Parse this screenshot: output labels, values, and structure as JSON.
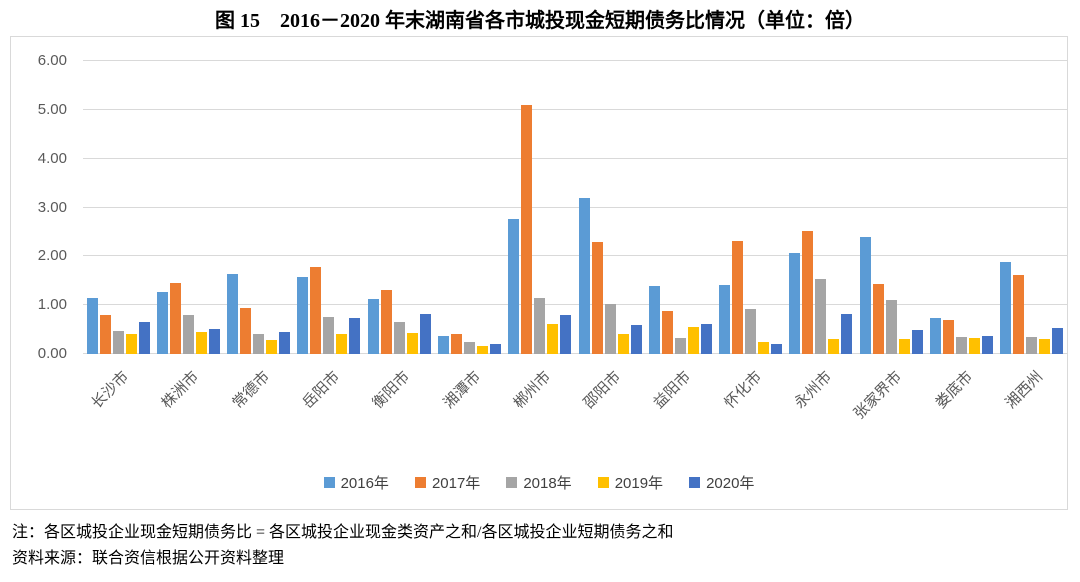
{
  "title": "图 15　2016－2020 年末湖南省各市城投现金短期债务比情况（单位：倍）",
  "chart_data": {
    "type": "bar",
    "title": "图 15　2016－2020 年末湖南省各市城投现金短期债务比情况（单位：倍）",
    "unit": "倍",
    "categories": [
      "长沙市",
      "株洲市",
      "常德市",
      "岳阳市",
      "衡阳市",
      "湘潭市",
      "郴州市",
      "邵阳市",
      "益阳市",
      "怀化市",
      "永州市",
      "张家界市",
      "娄底市",
      "湘西州"
    ],
    "series": [
      {
        "name": "2016年",
        "color": "#5B9BD5",
        "values": [
          1.15,
          1.27,
          1.64,
          1.58,
          1.13,
          0.37,
          2.76,
          3.19,
          1.39,
          1.41,
          2.06,
          2.4,
          0.73,
          1.88
        ]
      },
      {
        "name": "2017年",
        "color": "#ED7D31",
        "values": [
          0.8,
          1.45,
          0.95,
          1.78,
          1.32,
          0.4,
          5.1,
          2.3,
          0.88,
          2.32,
          2.51,
          1.44,
          0.69,
          1.62
        ]
      },
      {
        "name": "2018年",
        "color": "#A5A5A5",
        "values": [
          0.48,
          0.8,
          0.41,
          0.75,
          0.65,
          0.24,
          1.14,
          1.02,
          0.32,
          0.93,
          1.54,
          1.1,
          0.35,
          0.35
        ]
      },
      {
        "name": "2019年",
        "color": "#FFC000",
        "values": [
          0.42,
          0.45,
          0.29,
          0.41,
          0.44,
          0.17,
          0.62,
          0.42,
          0.55,
          0.25,
          0.31,
          0.31,
          0.32,
          0.3
        ]
      },
      {
        "name": "2020年",
        "color": "#4472C4",
        "values": [
          0.65,
          0.52,
          0.46,
          0.73,
          0.82,
          0.2,
          0.79,
          0.6,
          0.62,
          0.2,
          0.81,
          0.49,
          0.36,
          0.53
        ]
      }
    ],
    "ylim": [
      0,
      6
    ],
    "ytick_step": 1,
    "ytick_labels": [
      "0.00",
      "1.00",
      "2.00",
      "3.00",
      "4.00",
      "5.00",
      "6.00"
    ],
    "grid": true,
    "legend_position": "bottom",
    "gridline_color": "#d9d9d9",
    "axis_label_color": "#595959"
  },
  "notes": {
    "definition": "注：各区城投企业现金短期债务比 = 各区城投企业现金类资产之和/各区城投企业短期债务之和",
    "source": "资料来源：联合资信根据公开资料整理"
  }
}
